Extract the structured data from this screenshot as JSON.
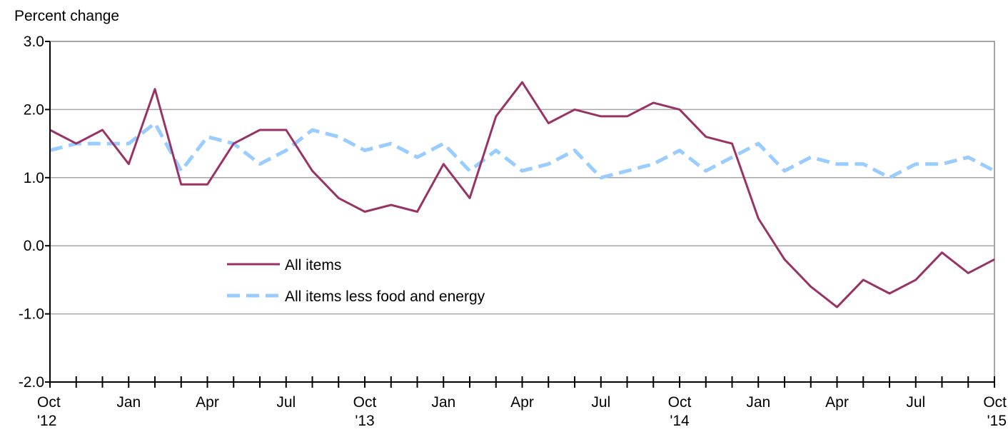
{
  "chart_data": {
    "type": "line",
    "ylabel": "Percent change",
    "ylim": [
      -2.0,
      3.0
    ],
    "yticks": [
      "3.0",
      "2.0",
      "1.0",
      "0.0",
      "-1.0",
      "-2.0"
    ],
    "grid": true,
    "legend_position": "center-left",
    "x_tick_labels": [
      {
        "month": "Oct",
        "year": "'12"
      },
      {
        "month": "Jan",
        "year": ""
      },
      {
        "month": "Apr",
        "year": ""
      },
      {
        "month": "Jul",
        "year": ""
      },
      {
        "month": "Oct",
        "year": "'13"
      },
      {
        "month": "Jan",
        "year": ""
      },
      {
        "month": "Apr",
        "year": ""
      },
      {
        "month": "Jul",
        "year": ""
      },
      {
        "month": "Oct",
        "year": "'14"
      },
      {
        "month": "Jan",
        "year": ""
      },
      {
        "month": "Apr",
        "year": ""
      },
      {
        "month": "Jul",
        "year": ""
      },
      {
        "month": "Oct",
        "year": "'15"
      }
    ],
    "series": [
      {
        "name": "All items",
        "color": "#993366",
        "style": "solid",
        "values": [
          1.7,
          1.5,
          1.7,
          1.2,
          2.3,
          0.9,
          0.9,
          1.5,
          1.7,
          1.7,
          1.1,
          0.7,
          0.5,
          0.6,
          0.5,
          1.2,
          0.7,
          1.9,
          2.4,
          1.8,
          2.0,
          1.9,
          1.9,
          2.1,
          2.0,
          1.6,
          1.5,
          0.4,
          -0.2,
          -0.6,
          -0.9,
          -0.5,
          -0.7,
          -0.5,
          -0.1,
          -0.4,
          -0.2
        ]
      },
      {
        "name": "All items less food and energy",
        "color": "#99CCFF",
        "style": "dashed",
        "values": [
          1.4,
          1.5,
          1.5,
          1.5,
          1.8,
          1.1,
          1.6,
          1.5,
          1.2,
          1.4,
          1.7,
          1.6,
          1.4,
          1.5,
          1.3,
          1.5,
          1.1,
          1.4,
          1.1,
          1.2,
          1.4,
          1.0,
          1.1,
          1.2,
          1.4,
          1.1,
          1.3,
          1.5,
          1.1,
          1.3,
          1.2,
          1.2,
          1.0,
          1.2,
          1.2,
          1.3,
          1.1
        ]
      }
    ]
  }
}
